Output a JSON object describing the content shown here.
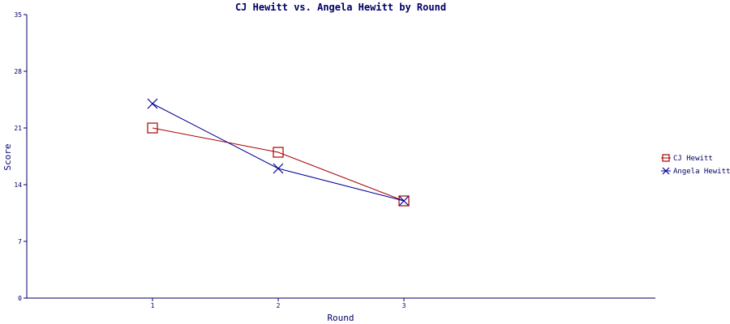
{
  "chart_data": {
    "type": "line",
    "title": "CJ Hewitt vs. Angela Hewitt by Round",
    "xlabel": "Round",
    "ylabel": "Score",
    "x": [
      1,
      2,
      3
    ],
    "x_tick_labels": [
      "1",
      "2",
      "3"
    ],
    "xlim": [
      0,
      5
    ],
    "ylim": [
      0,
      35
    ],
    "y_ticks": [
      0,
      7,
      14,
      21,
      28,
      35
    ],
    "y_tick_labels": [
      "0",
      "7",
      "14",
      "21",
      "28",
      "35"
    ],
    "grid": false,
    "legend_position": "right",
    "series": [
      {
        "name": "CJ Hewitt",
        "values": [
          21,
          18,
          12
        ],
        "color": "#aa0000",
        "marker": "square"
      },
      {
        "name": "Angela Hewitt",
        "values": [
          24,
          16,
          12
        ],
        "color": "#000099",
        "marker": "x"
      }
    ]
  },
  "colors": {
    "axis": "#000066",
    "text": "#000066"
  }
}
